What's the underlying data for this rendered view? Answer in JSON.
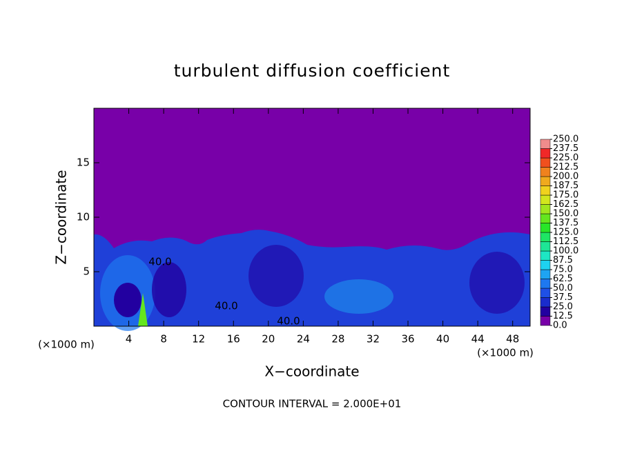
{
  "chart_data": {
    "type": "contour",
    "title": "turbulent diffusion coefficient",
    "xlabel": "X−coordinate",
    "ylabel": "Z−coordinate",
    "x_unit": "(×1000 m)",
    "x_unit_right": "(×1000 m)",
    "note": "CONTOUR INTERVAL = 2.000E+01",
    "xlim": [
      0,
      50
    ],
    "ylim": [
      0,
      20
    ],
    "xticks": [
      4,
      8,
      12,
      16,
      20,
      24,
      28,
      32,
      36,
      40,
      44,
      48
    ],
    "yticks": [
      5,
      10,
      15
    ],
    "contour_labels": [
      "40.0",
      "40.0",
      "40.0"
    ],
    "colorbar": {
      "levels": [
        {
          "value": 0,
          "label": "0.0"
        },
        12.5,
        {
          "value": 25,
          "label": "25.0"
        },
        37.5,
        {
          "value": 50,
          "label": "50.0"
        },
        62.5,
        {
          "value": 75,
          "label": "75.0"
        },
        87.5,
        {
          "value": 100,
          "label": "100.0"
        },
        112.5,
        {
          "value": 125,
          "label": "125.0"
        },
        137.5,
        {
          "value": 150,
          "label": "150.0"
        },
        162.5,
        {
          "value": 175,
          "label": "175.0"
        },
        187.5,
        {
          "value": 200,
          "label": "200.0"
        },
        212.5,
        {
          "value": 225,
          "label": "225.0"
        },
        237.5,
        {
          "value": 250,
          "label": "250.0"
        }
      ],
      "colors": [
        "#7800a8",
        "#2200a0",
        "#1a2ccc",
        "#1f50e6",
        "#1e78f0",
        "#1ea4f2",
        "#1ed2f0",
        "#1ee6c4",
        "#1ee696",
        "#1ee664",
        "#28e628",
        "#64e61e",
        "#a0e61e",
        "#d2e61e",
        "#f0d21e",
        "#f0aa1e",
        "#f0821e",
        "#f0501e",
        "#f02828",
        "#f08c8c"
      ]
    }
  }
}
